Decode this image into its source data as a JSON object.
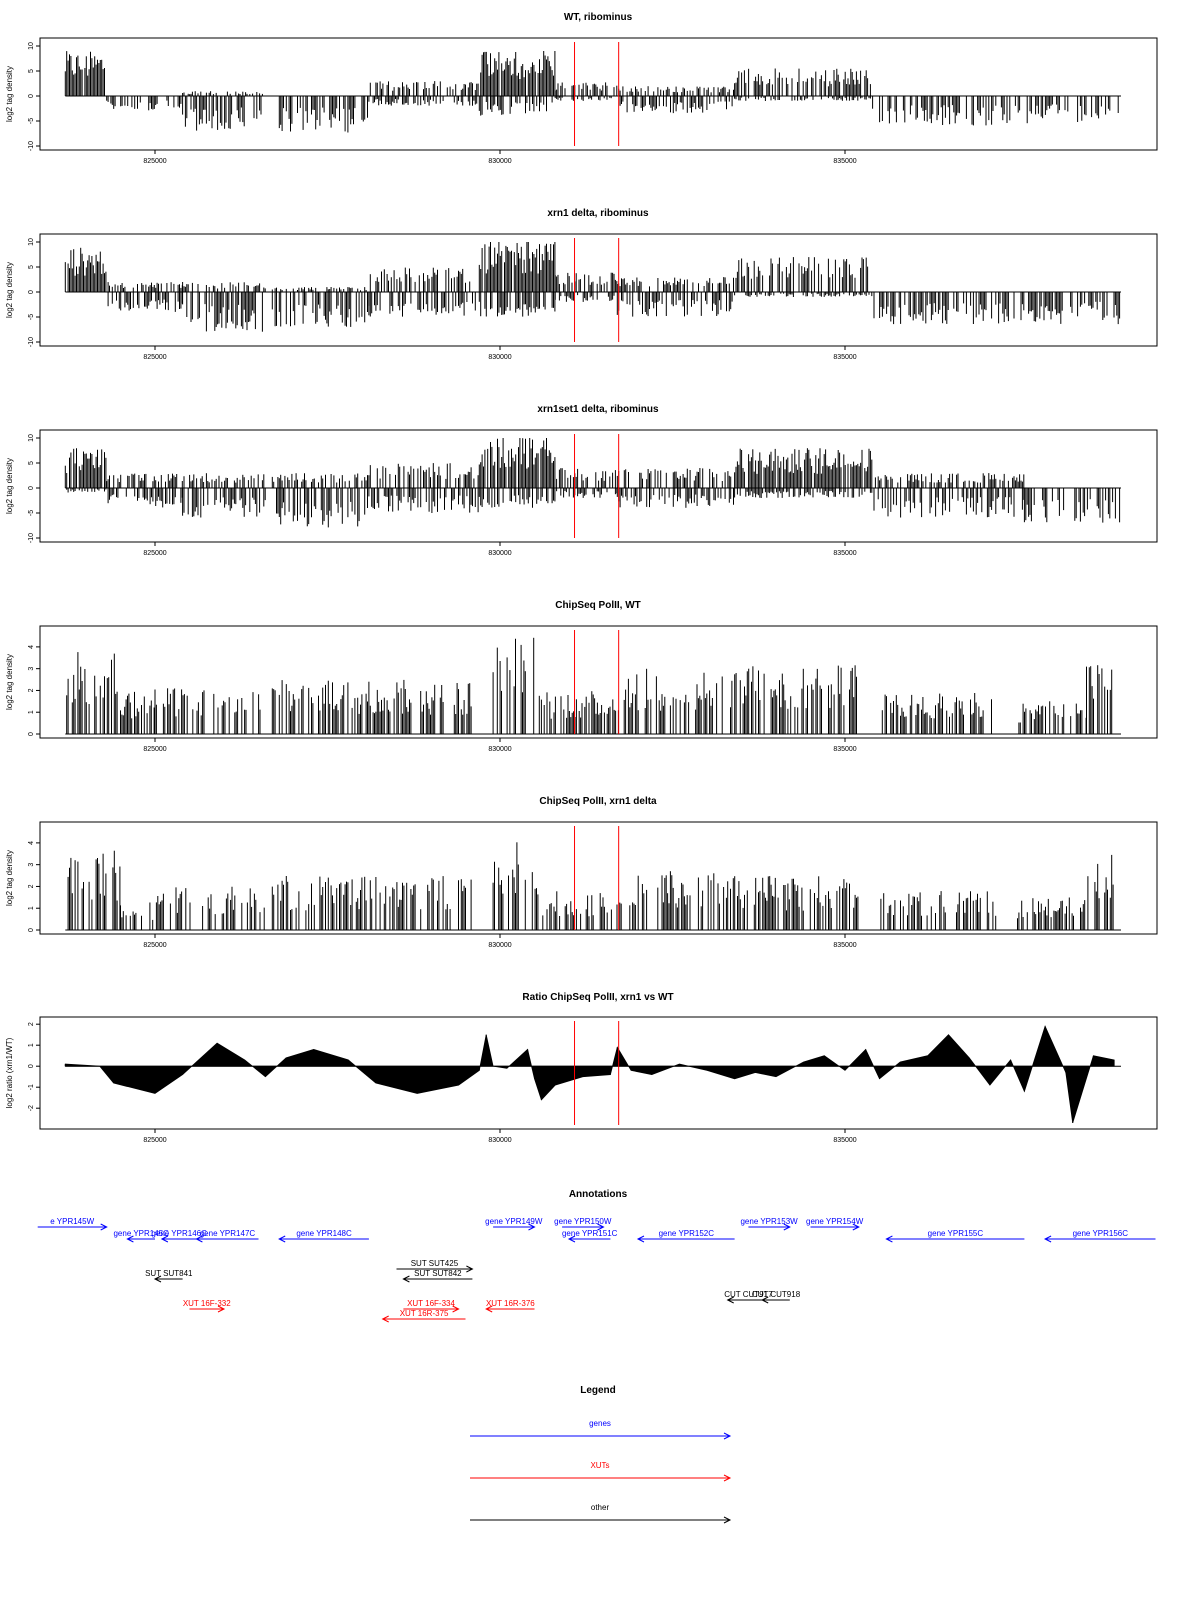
{
  "colors": {
    "gene": "#0000ff",
    "xut": "#ff0000",
    "other": "#000000",
    "marker": "#ff0000"
  },
  "x_axis": {
    "ticks": [
      825000,
      830000,
      835000
    ],
    "tick_labels": [
      "825000",
      "830000",
      "835000"
    ]
  },
  "markers": [
    831080,
    831720
  ],
  "chart_data": [
    {
      "type": "bar",
      "title": "WT, ribominus",
      "ylabel": "log2 tag density",
      "ylim": [
        -10,
        10
      ],
      "yticks": [
        10,
        5,
        0,
        -5,
        -10
      ],
      "ytick_labels": [
        "10",
        "5",
        "0",
        "-5",
        "-10"
      ],
      "segments": [
        {
          "x0": 823700,
          "x1": 824300,
          "pos": 9,
          "neg": 0
        },
        {
          "x0": 824300,
          "x1": 825400,
          "pos": 0,
          "neg": -3
        },
        {
          "x0": 825400,
          "x1": 826600,
          "pos": 1,
          "neg": -7
        },
        {
          "x0": 826700,
          "x1": 828100,
          "pos": 0,
          "neg": -7.5
        },
        {
          "x0": 828100,
          "x1": 829700,
          "pos": 3,
          "neg": -2
        },
        {
          "x0": 829700,
          "x1": 830800,
          "pos": 9.5,
          "neg": -4
        },
        {
          "x0": 830800,
          "x1": 831700,
          "pos": 3,
          "neg": -1
        },
        {
          "x0": 831700,
          "x1": 833400,
          "pos": 2,
          "neg": -3.5
        },
        {
          "x0": 833400,
          "x1": 835400,
          "pos": 5.5,
          "neg": -1
        },
        {
          "x0": 835400,
          "x1": 837600,
          "pos": 0,
          "neg": -6
        },
        {
          "x0": 837600,
          "x1": 839000,
          "pos": 0,
          "neg": -5.5
        }
      ]
    },
    {
      "type": "bar",
      "title": "xrn1 delta, ribominus",
      "ylabel": "log2 tag density",
      "ylim": [
        -10,
        10
      ],
      "yticks": [
        10,
        5,
        0,
        -5,
        -10
      ],
      "ytick_labels": [
        "10",
        "5",
        "0",
        "-5",
        "-10"
      ],
      "segments": [
        {
          "x0": 823700,
          "x1": 824300,
          "pos": 9,
          "neg": 0
        },
        {
          "x0": 824300,
          "x1": 825400,
          "pos": 2,
          "neg": -4
        },
        {
          "x0": 825400,
          "x1": 826600,
          "pos": 2,
          "neg": -8
        },
        {
          "x0": 826700,
          "x1": 828100,
          "pos": 1,
          "neg": -7
        },
        {
          "x0": 828100,
          "x1": 829700,
          "pos": 5,
          "neg": -5
        },
        {
          "x0": 829700,
          "x1": 830800,
          "pos": 10.5,
          "neg": -5
        },
        {
          "x0": 830800,
          "x1": 831700,
          "pos": 4,
          "neg": -2
        },
        {
          "x0": 831700,
          "x1": 833400,
          "pos": 3,
          "neg": -5
        },
        {
          "x0": 833400,
          "x1": 835400,
          "pos": 7,
          "neg": -1
        },
        {
          "x0": 835400,
          "x1": 837600,
          "pos": 0,
          "neg": -6.5
        },
        {
          "x0": 837600,
          "x1": 839000,
          "pos": 0,
          "neg": -6.5
        }
      ]
    },
    {
      "type": "bar",
      "title": "xrn1set1 delta, ribominus",
      "ylabel": "log2 tag density",
      "ylim": [
        -10,
        10
      ],
      "yticks": [
        10,
        5,
        0,
        -5,
        -10
      ],
      "ytick_labels": [
        "10",
        "5",
        "0",
        "-5",
        "-10"
      ],
      "segments": [
        {
          "x0": 823700,
          "x1": 824300,
          "pos": 8,
          "neg": -1
        },
        {
          "x0": 824300,
          "x1": 825400,
          "pos": 3,
          "neg": -4
        },
        {
          "x0": 825400,
          "x1": 826600,
          "pos": 3,
          "neg": -6
        },
        {
          "x0": 826700,
          "x1": 828100,
          "pos": 3,
          "neg": -8
        },
        {
          "x0": 828100,
          "x1": 829700,
          "pos": 5,
          "neg": -5
        },
        {
          "x0": 829700,
          "x1": 830800,
          "pos": 11,
          "neg": -4
        },
        {
          "x0": 830800,
          "x1": 831700,
          "pos": 4,
          "neg": -2
        },
        {
          "x0": 831700,
          "x1": 833400,
          "pos": 4,
          "neg": -4
        },
        {
          "x0": 833400,
          "x1": 835400,
          "pos": 8,
          "neg": -2
        },
        {
          "x0": 835400,
          "x1": 837600,
          "pos": 3,
          "neg": -6
        },
        {
          "x0": 837600,
          "x1": 839000,
          "pos": 0,
          "neg": -7
        }
      ]
    },
    {
      "type": "bar",
      "title": "ChipSeq PolII, WT",
      "ylabel": "log2 tag density",
      "ylim": [
        0,
        4.5
      ],
      "yticks": [
        0,
        1,
        2,
        3,
        4
      ],
      "ytick_labels": [
        "0",
        "1",
        "2",
        "3",
        "4"
      ],
      "segments": [
        {
          "x0": 823700,
          "x1": 824500,
          "pos": 3.8
        },
        {
          "x0": 824500,
          "x1": 825000,
          "pos": 2
        },
        {
          "x0": 825000,
          "x1": 826600,
          "pos": 2.2
        },
        {
          "x0": 826700,
          "x1": 829600,
          "pos": 2.5
        },
        {
          "x0": 829900,
          "x1": 830600,
          "pos": 4.6
        },
        {
          "x0": 830600,
          "x1": 831800,
          "pos": 2
        },
        {
          "x0": 831800,
          "x1": 833300,
          "pos": 3
        },
        {
          "x0": 833300,
          "x1": 835200,
          "pos": 3.2
        },
        {
          "x0": 835500,
          "x1": 837200,
          "pos": 2
        },
        {
          "x0": 837500,
          "x1": 838500,
          "pos": 1.5
        },
        {
          "x0": 838500,
          "x1": 838900,
          "pos": 3.5
        }
      ]
    },
    {
      "type": "bar",
      "title": "ChipSeq PolII, xrn1 delta",
      "ylabel": "log2 tag density",
      "ylim": [
        0,
        4.5
      ],
      "yticks": [
        0,
        1,
        2,
        3,
        4
      ],
      "ytick_labels": [
        "0",
        "1",
        "2",
        "3",
        "4"
      ],
      "segments": [
        {
          "x0": 823700,
          "x1": 824500,
          "pos": 3.8
        },
        {
          "x0": 824500,
          "x1": 825000,
          "pos": 1.3
        },
        {
          "x0": 825000,
          "x1": 826600,
          "pos": 2
        },
        {
          "x0": 826700,
          "x1": 829600,
          "pos": 2.5
        },
        {
          "x0": 829900,
          "x1": 830600,
          "pos": 4.4
        },
        {
          "x0": 830600,
          "x1": 831800,
          "pos": 1.8
        },
        {
          "x0": 831800,
          "x1": 833300,
          "pos": 2.7
        },
        {
          "x0": 833300,
          "x1": 835200,
          "pos": 2.5
        },
        {
          "x0": 835500,
          "x1": 837200,
          "pos": 1.8
        },
        {
          "x0": 837500,
          "x1": 838500,
          "pos": 1.5
        },
        {
          "x0": 838500,
          "x1": 838900,
          "pos": 3.5
        }
      ]
    },
    {
      "type": "area",
      "title": "Ratio ChipSeq PolII, xrn1 vs WT",
      "ylabel": "log2 ratio (xrn1/WT)",
      "ylim": [
        -2.8,
        2.2
      ],
      "yticks": [
        2,
        1,
        0,
        -1,
        -2
      ],
      "ytick_labels": [
        "2",
        "1",
        "0",
        "-1",
        "-2"
      ],
      "x": [
        823700,
        824200,
        824400,
        825000,
        825400,
        825900,
        826300,
        826600,
        826900,
        827300,
        827800,
        828200,
        828800,
        829400,
        829700,
        829800,
        829900,
        830100,
        830400,
        830500,
        830600,
        830800,
        831200,
        831600,
        831700,
        831900,
        832200,
        832600,
        833000,
        833400,
        833700,
        834000,
        834400,
        834700,
        835000,
        835300,
        835500,
        835800,
        836200,
        836500,
        836800,
        837100,
        837400,
        837600,
        837900,
        838200,
        838300,
        838600,
        838900
      ],
      "values": [
        0.1,
        0,
        -0.8,
        -1.3,
        -0.4,
        1.1,
        0.3,
        -0.5,
        0.4,
        0.8,
        0.3,
        -0.8,
        -1.3,
        -0.9,
        -0.2,
        1.5,
        0,
        -0.1,
        0.8,
        -0.6,
        -1.6,
        -0.9,
        -0.5,
        -0.4,
        0.9,
        -0.2,
        -0.4,
        0.1,
        -0.2,
        -0.6,
        -0.3,
        -0.5,
        0.2,
        0.5,
        -0.2,
        0.8,
        -0.6,
        0.2,
        0.5,
        1.5,
        0.4,
        -0.9,
        0.3,
        -1.2,
        1.9,
        -0.3,
        -2.7,
        0.5,
        0.3
      ]
    }
  ],
  "annotations": {
    "title": "Annotations",
    "genes": [
      {
        "label": "e YPR145W",
        "x0": 823300,
        "x1": 824300,
        "dir": "right",
        "row": 0
      },
      {
        "label": "gene YPR145C",
        "x0": 825000,
        "x1": 824600,
        "dir": "left",
        "row": 1
      },
      {
        "label": "gene YPR146C",
        "x0": 825600,
        "x1": 825100,
        "dir": "left",
        "row": 1
      },
      {
        "label": "gene YPR147C",
        "x0": 826500,
        "x1": 825600,
        "dir": "left",
        "row": 1
      },
      {
        "label": "gene YPR148C",
        "x0": 828100,
        "x1": 826800,
        "dir": "left",
        "row": 1
      },
      {
        "label": "gene YPR149W",
        "x0": 829900,
        "x1": 830500,
        "dir": "right",
        "row": 0
      },
      {
        "label": "gene YPR150W",
        "x0": 830900,
        "x1": 831500,
        "dir": "right",
        "row": 0
      },
      {
        "label": "gene YPR151C",
        "x0": 831600,
        "x1": 831000,
        "dir": "left",
        "row": 1
      },
      {
        "label": "gene YPR152C",
        "x0": 833400,
        "x1": 832000,
        "dir": "left",
        "row": 1
      },
      {
        "label": "gene YPR153W",
        "x0": 833600,
        "x1": 834200,
        "dir": "right",
        "row": 0
      },
      {
        "label": "gene YPR154W",
        "x0": 834500,
        "x1": 835200,
        "dir": "right",
        "row": 0
      },
      {
        "label": "gene YPR155C",
        "x0": 837600,
        "x1": 835600,
        "dir": "left",
        "row": 1
      },
      {
        "label": "gene YPR156C",
        "x0": 839500,
        "x1": 837900,
        "dir": "left",
        "row": 1
      }
    ],
    "suts": [
      {
        "label": "SUT SUT425",
        "x0": 828500,
        "x1": 829600,
        "dir": "right",
        "row": 0
      },
      {
        "label": "SUT SUT842",
        "x0": 829600,
        "x1": 828600,
        "dir": "left",
        "row": 1
      },
      {
        "label": "SUT SUT841",
        "x0": 825400,
        "x1": 825000,
        "dir": "left",
        "row": 1
      }
    ],
    "cuts": [
      {
        "label": "CUT CUT917",
        "x0": 833900,
        "x1": 833300,
        "dir": "left",
        "row": 0
      },
      {
        "label": "CUT CUT918",
        "x0": 834200,
        "x1": 833800,
        "dir": "left",
        "row": 0
      }
    ],
    "xuts": [
      {
        "label": "XUT 16F-332",
        "x0": 825500,
        "x1": 826000,
        "dir": "right",
        "row": 0
      },
      {
        "label": "XUT 16F-334",
        "x0": 828600,
        "x1": 829400,
        "dir": "right",
        "row": 0
      },
      {
        "label": "XUT 16R-375",
        "x0": 829500,
        "x1": 828300,
        "dir": "left",
        "row": 1
      },
      {
        "label": "XUT 16R-376",
        "x0": 830500,
        "x1": 829800,
        "dir": "left",
        "row": 0
      }
    ]
  },
  "legend": {
    "title": "Legend",
    "items": [
      {
        "label": "genes",
        "color": "#0000ff"
      },
      {
        "label": "XUTs",
        "color": "#ff0000"
      },
      {
        "label": "other",
        "color": "#000000"
      }
    ]
  }
}
